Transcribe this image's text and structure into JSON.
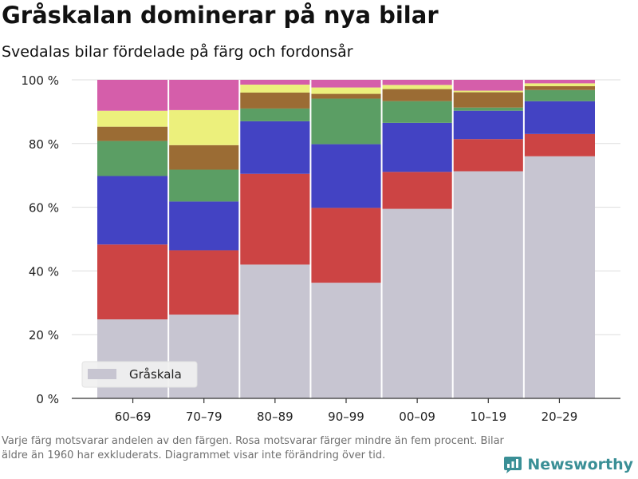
{
  "title": "Gråskalan dominerar på nya bilar",
  "subtitle": "Svedalas bilar fördelade på färg och fordonsår",
  "footnote": "Varje färg motsvarar andelen av den färgen. Rosa motsvarar färger mindre än fem procent. Bilar äldre än 1960 har exkluderats. Diagrammet visar inte förändring över tid.",
  "brand": {
    "name": "Newsworthy",
    "icon": "newsworthy-logo-icon",
    "color": "#3a8f96"
  },
  "chart_data": {
    "type": "bar",
    "stacked": true,
    "categories": [
      "60–69",
      "70–79",
      "80–89",
      "90–99",
      "00–09",
      "10–19",
      "20–29"
    ],
    "ylim": [
      0,
      100
    ],
    "yticks": [
      0,
      20,
      40,
      60,
      80,
      100
    ],
    "ytick_labels": [
      "0 %",
      "20 %",
      "40 %",
      "60 %",
      "80 %",
      "100 %"
    ],
    "grid": true,
    "legend": {
      "position": "bottom-left",
      "entries": [
        "Gråskala"
      ]
    },
    "series": [
      {
        "name": "Gråskala",
        "color": "#c7c5d1",
        "values": [
          24.8,
          26.3,
          42.0,
          36.3,
          59.5,
          71.3,
          76.0
        ]
      },
      {
        "color": "#cc4444",
        "values": [
          23.5,
          20.2,
          28.5,
          23.5,
          11.6,
          10.1,
          7.0
        ]
      },
      {
        "color": "#4343c3",
        "values": [
          21.5,
          15.3,
          16.5,
          20.0,
          15.4,
          8.9,
          10.3
        ]
      },
      {
        "color": "#5b9e64",
        "values": [
          11.0,
          10.0,
          4.0,
          14.3,
          6.8,
          1.0,
          3.5
        ]
      },
      {
        "color": "#9b6c34",
        "values": [
          4.5,
          7.7,
          5.0,
          1.5,
          3.8,
          4.8,
          1.2
        ]
      },
      {
        "color": "#ecf07c",
        "values": [
          5.0,
          11.0,
          2.5,
          2.0,
          1.3,
          0.5,
          0.9
        ]
      },
      {
        "color": "#d55eaa",
        "values": [
          9.7,
          9.5,
          1.5,
          2.4,
          1.6,
          3.4,
          1.1
        ]
      }
    ]
  }
}
